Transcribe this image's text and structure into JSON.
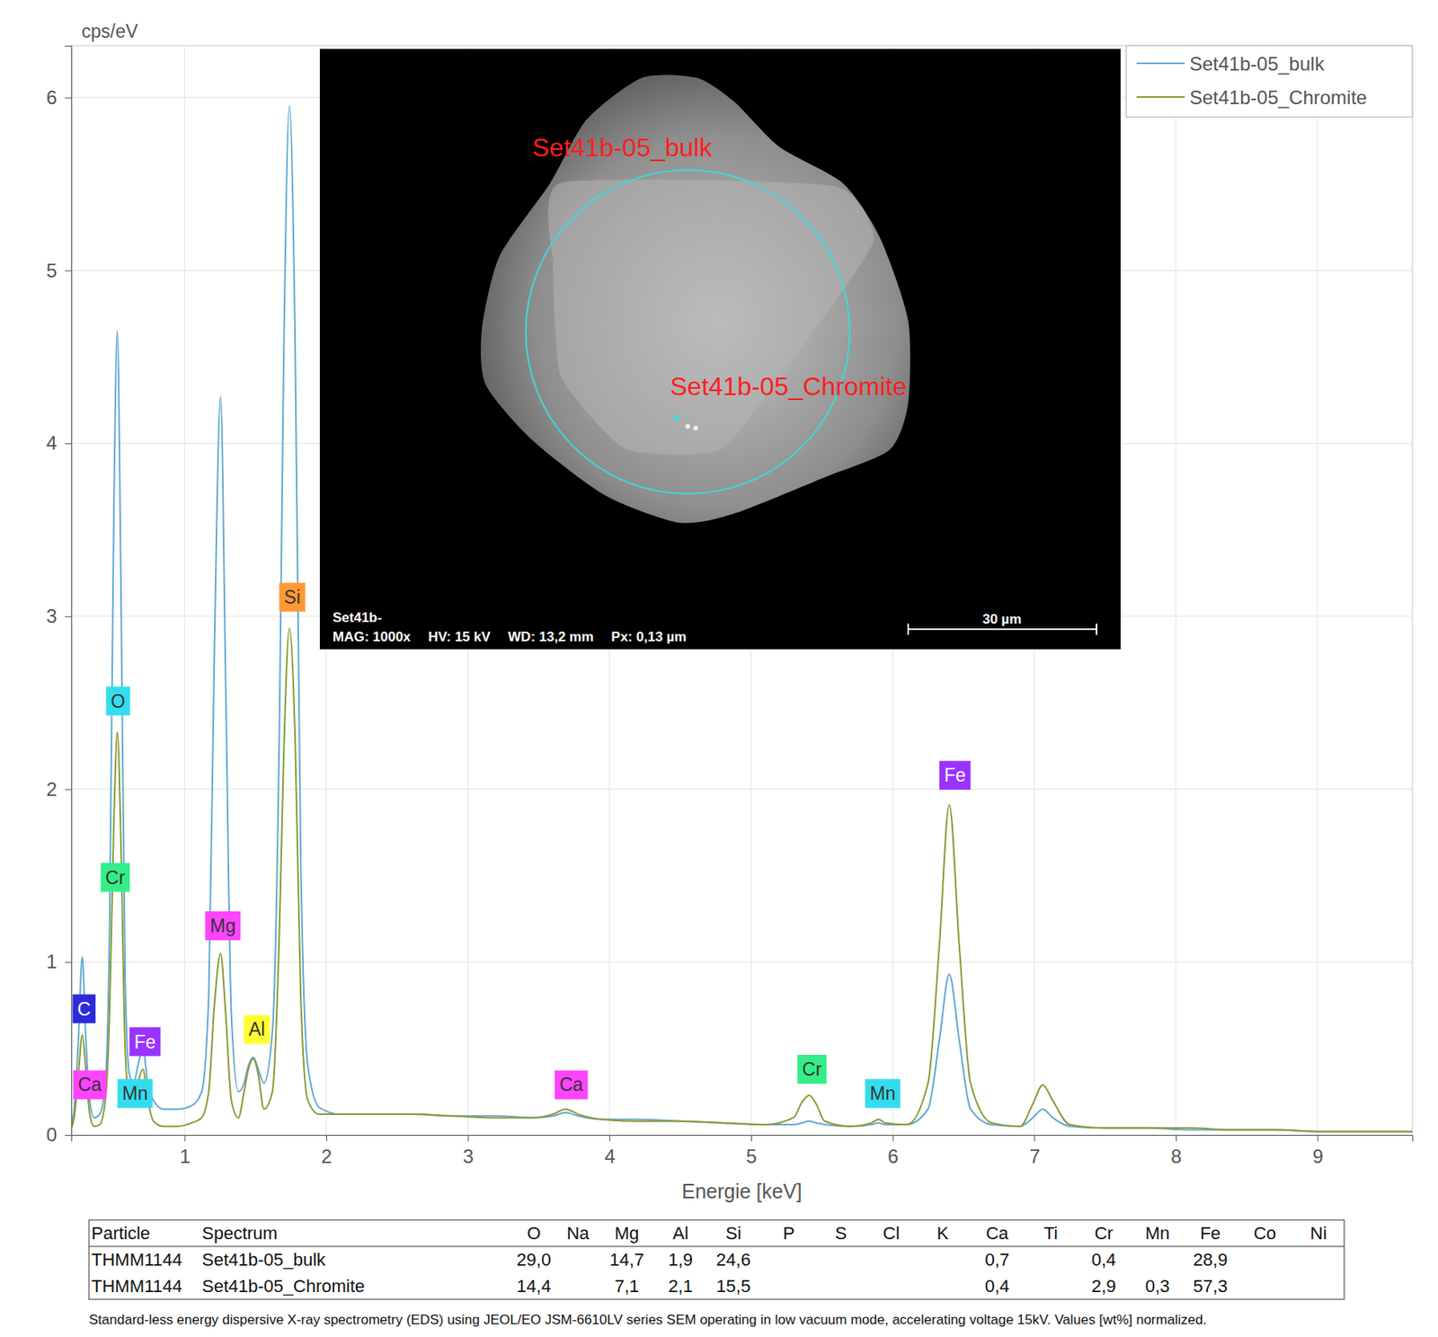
{
  "chart_data": {
    "type": "line",
    "x_label": "Energie [keV]",
    "y_label": "cps/eV",
    "xlim": [
      0.2,
      9.67
    ],
    "xticks": [
      1,
      2,
      3,
      4,
      5,
      6,
      7,
      8,
      9
    ],
    "ylim": [
      0,
      6.3
    ],
    "yticks": [
      0,
      1,
      2,
      3,
      4,
      5,
      6
    ],
    "grid": true,
    "legend": "top-right",
    "x": [
      0.2,
      0.22,
      0.25,
      0.277,
      0.3,
      0.33,
      0.36,
      0.4,
      0.44,
      0.47,
      0.5,
      0.525,
      0.55,
      0.58,
      0.61,
      0.64,
      0.67,
      0.705,
      0.74,
      0.78,
      0.85,
      0.95,
      1.05,
      1.12,
      1.17,
      1.21,
      1.254,
      1.29,
      1.33,
      1.38,
      1.42,
      1.45,
      1.486,
      1.52,
      1.56,
      1.62,
      1.67,
      1.7,
      1.74,
      1.78,
      1.82,
      1.87,
      1.95,
      2.1,
      2.3,
      2.6,
      2.9,
      3.2,
      3.45,
      3.6,
      3.69,
      3.78,
      3.95,
      4.2,
      4.5,
      4.8,
      5.1,
      5.3,
      5.36,
      5.41,
      5.46,
      5.52,
      5.7,
      5.85,
      5.9,
      5.95,
      6.1,
      6.25,
      6.33,
      6.4,
      6.47,
      6.55,
      6.7,
      6.9,
      6.99,
      7.06,
      7.13,
      7.25,
      7.5,
      7.8,
      8.1,
      8.4,
      8.7,
      9.0,
      9.3,
      9.67
    ],
    "series": [
      {
        "name": "Set41b-05_bulk",
        "color": "#62a9d3",
        "values": [
          0.05,
          0.15,
          0.55,
          1.03,
          0.6,
          0.2,
          0.1,
          0.12,
          0.3,
          1.2,
          3.6,
          4.65,
          3.2,
          0.9,
          0.35,
          0.3,
          0.4,
          0.5,
          0.3,
          0.2,
          0.15,
          0.15,
          0.17,
          0.25,
          0.8,
          2.8,
          4.27,
          2.6,
          0.7,
          0.25,
          0.3,
          0.4,
          0.45,
          0.38,
          0.3,
          0.6,
          2.4,
          4.5,
          5.95,
          4.6,
          1.6,
          0.4,
          0.16,
          0.12,
          0.12,
          0.12,
          0.11,
          0.11,
          0.1,
          0.11,
          0.13,
          0.11,
          0.09,
          0.09,
          0.08,
          0.07,
          0.06,
          0.06,
          0.07,
          0.08,
          0.07,
          0.06,
          0.05,
          0.06,
          0.07,
          0.06,
          0.06,
          0.15,
          0.55,
          0.93,
          0.55,
          0.15,
          0.06,
          0.05,
          0.1,
          0.15,
          0.1,
          0.05,
          0.04,
          0.04,
          0.03,
          0.03,
          0.03,
          0.02,
          0.02,
          0.02
        ]
      },
      {
        "name": "Set41b-05_Chromite",
        "color": "#8a9a35",
        "values": [
          0.04,
          0.1,
          0.35,
          0.58,
          0.4,
          0.12,
          0.05,
          0.06,
          0.2,
          0.7,
          1.8,
          2.33,
          1.7,
          0.5,
          0.2,
          0.18,
          0.3,
          0.38,
          0.2,
          0.08,
          0.05,
          0.05,
          0.07,
          0.1,
          0.25,
          0.75,
          1.05,
          0.7,
          0.2,
          0.1,
          0.25,
          0.38,
          0.44,
          0.35,
          0.15,
          0.25,
          1.2,
          2.2,
          2.93,
          2.3,
          0.8,
          0.2,
          0.12,
          0.12,
          0.12,
          0.12,
          0.11,
          0.1,
          0.1,
          0.12,
          0.15,
          0.12,
          0.09,
          0.08,
          0.08,
          0.07,
          0.06,
          0.1,
          0.19,
          0.23,
          0.18,
          0.08,
          0.05,
          0.07,
          0.09,
          0.07,
          0.06,
          0.3,
          1.1,
          1.91,
          1.1,
          0.3,
          0.07,
          0.05,
          0.18,
          0.29,
          0.2,
          0.06,
          0.04,
          0.04,
          0.04,
          0.03,
          0.03,
          0.02,
          0.02,
          0.02
        ]
      }
    ],
    "annotations": [
      {
        "text": "C",
        "x": 0.29,
        "y": 0.73,
        "color": "#2b2bdc"
      },
      {
        "text": "Ca",
        "x": 0.33,
        "y": 0.29,
        "color": "#ff44ff"
      },
      {
        "text": "O",
        "x": 0.53,
        "y": 2.51,
        "color": "#33ddee"
      },
      {
        "text": "Cr",
        "x": 0.51,
        "y": 1.49,
        "color": "#33ee88"
      },
      {
        "text": "Fe",
        "x": 0.72,
        "y": 0.54,
        "color": "#9933ff"
      },
      {
        "text": "Mn",
        "x": 0.65,
        "y": 0.24,
        "color": "#33ddee"
      },
      {
        "text": "Mg",
        "x": 1.27,
        "y": 1.21,
        "color": "#ff44ff"
      },
      {
        "text": "Al",
        "x": 1.51,
        "y": 0.61,
        "color": "#ffff33"
      },
      {
        "text": "Si",
        "x": 1.76,
        "y": 3.11,
        "color": "#ff9933"
      },
      {
        "text": "Ca",
        "x": 3.73,
        "y": 0.29,
        "color": "#ff44ff"
      },
      {
        "text": "Cr",
        "x": 5.43,
        "y": 0.38,
        "color": "#33ee88"
      },
      {
        "text": "Mn",
        "x": 5.93,
        "y": 0.24,
        "color": "#33ddee"
      },
      {
        "text": "Fe",
        "x": 6.44,
        "y": 2.08,
        "color": "#9933ff"
      }
    ]
  },
  "inset": {
    "spots": [
      "Set41b-05_bulk",
      "Set41b-05_Chromite"
    ],
    "sample": "Set41b-",
    "info": [
      "MAG: 1000x",
      "HV: 15 kV",
      "WD: 13,2 mm",
      "Px: 0,13 µm"
    ],
    "scale_bar": "30 µm"
  },
  "table": {
    "columns": [
      "Particle",
      "Spectrum",
      "O",
      "Na",
      "Mg",
      "Al",
      "Si",
      "P",
      "S",
      "Cl",
      "K",
      "Ca",
      "Ti",
      "Cr",
      "Mn",
      "Fe",
      "Co",
      "Ni"
    ],
    "rows": [
      [
        "THMM1144",
        "Set41b-05_bulk",
        "29,0",
        null,
        "14,7",
        "1,9",
        "24,6",
        null,
        null,
        null,
        null,
        "0,7",
        null,
        "0,4",
        null,
        "28,9",
        null,
        null
      ],
      [
        "THMM1144",
        "Set41b-05_Chromite",
        "14,4",
        null,
        "7,1",
        "2,1",
        "15,5",
        null,
        null,
        null,
        null,
        "0,4",
        null,
        "2,9",
        "0,3",
        "57,3",
        null,
        null
      ]
    ]
  },
  "caption": "Standard-less energy dispersive X-ray spectrometry (EDS) using JEOL/EO JSM-6610LV series SEM operating in low vacuum mode, accelerating voltage 15kV. Values [wt%] normalized."
}
